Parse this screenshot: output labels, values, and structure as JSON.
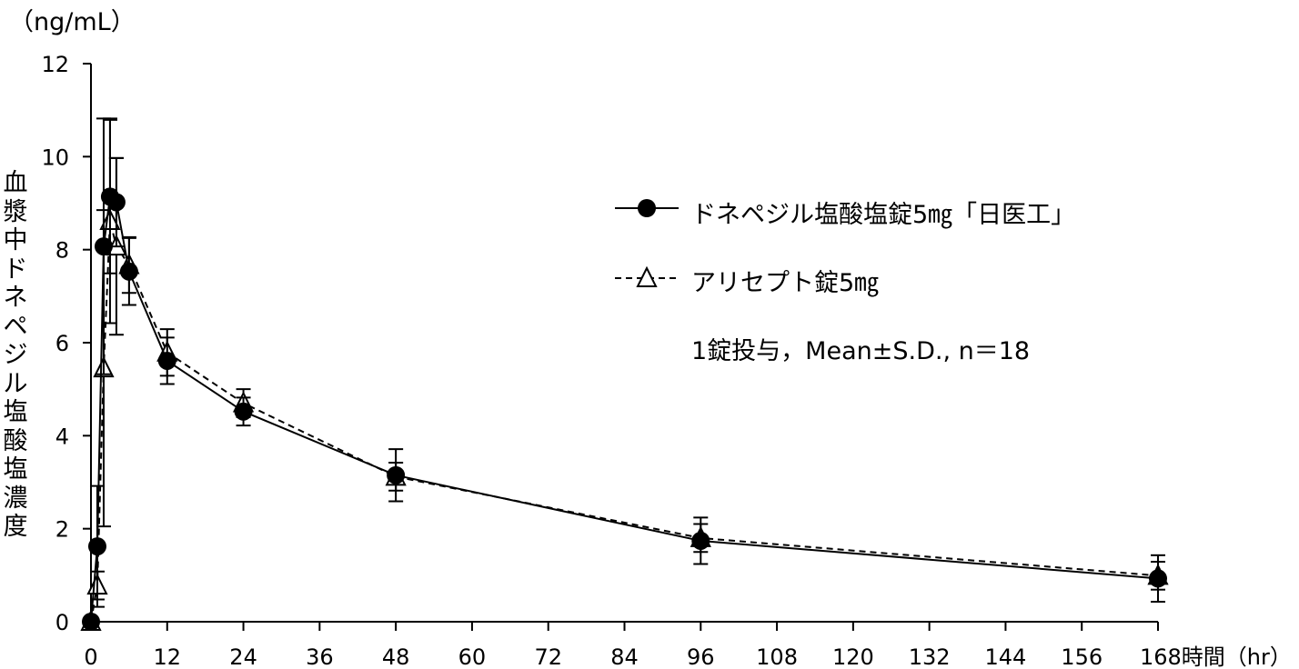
{
  "chart_data": {
    "type": "line",
    "x_unit_prefix": "時間",
    "x_unit": "（hr）",
    "y_unit": "（ng/mL）",
    "ylabel": "血漿中ドネペジル塩酸塩濃度",
    "xlim": [
      0,
      168
    ],
    "ylim": [
      0,
      12
    ],
    "xticks": [
      0,
      12,
      24,
      36,
      48,
      60,
      72,
      84,
      96,
      108,
      120,
      132,
      144,
      156,
      168
    ],
    "yticks": [
      0,
      2,
      4,
      6,
      8,
      10,
      12
    ],
    "grid": false,
    "legend_position": "upper-right",
    "note": "1錠投与，Mean±S.D., n＝18",
    "series": [
      {
        "name": "ドネペジル塩酸塩錠5㎎「日医工」",
        "marker": "filled-circle",
        "line": "solid",
        "color": "#000000",
        "x": [
          0,
          1,
          2,
          3,
          4,
          6,
          12,
          24,
          48,
          96,
          168
        ],
        "y": [
          0,
          1.62,
          8.07,
          9.14,
          9.02,
          7.53,
          5.61,
          4.52,
          3.15,
          1.74,
          0.93
        ],
        "sd": [
          0,
          1.3,
          2.75,
          1.65,
          0.95,
          0.72,
          0.5,
          0.3,
          0.56,
          0.5,
          0.5
        ]
      },
      {
        "name": "アリセプト錠5㎎",
        "marker": "open-triangle",
        "line": "dashed",
        "color": "#000000",
        "x": [
          0,
          1,
          2,
          3,
          4,
          6,
          12,
          24,
          48,
          96,
          168
        ],
        "y": [
          0,
          0.78,
          5.45,
          8.62,
          8.07,
          7.67,
          5.79,
          4.7,
          3.12,
          1.8,
          0.99
        ],
        "sd": [
          0,
          0.3,
          3.4,
          2.2,
          1.9,
          0.6,
          0.5,
          0.3,
          0.3,
          0.3,
          0.3
        ]
      }
    ]
  }
}
